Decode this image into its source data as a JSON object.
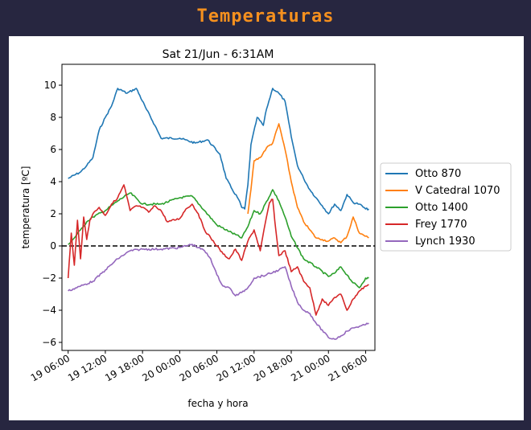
{
  "app": {
    "title": "Temperaturas"
  },
  "chart_data": {
    "type": "line",
    "title": "Sat 21/Jun - 6:31AM",
    "xlabel": "fecha y hora",
    "ylabel": "temperatura [ºC]",
    "x_range": [
      "2025-06-19 05:00",
      "2025-06-21 07:30"
    ],
    "ylim": [
      -6.5,
      11.3
    ],
    "x_ticks": [
      "19 06:00",
      "19 12:00",
      "19 18:00",
      "20 00:00",
      "20 06:00",
      "20 12:00",
      "20 18:00",
      "21 00:00",
      "21 06:00"
    ],
    "y_ticks": [
      "10",
      "8",
      "6",
      "4",
      "2",
      "0",
      "−2",
      "−4",
      "−6"
    ],
    "y_tick_values": [
      10,
      8,
      6,
      4,
      2,
      0,
      -2,
      -4,
      -6
    ],
    "reference_line": {
      "y": 0,
      "style": "dashed",
      "color": "#000000"
    },
    "grid": false,
    "legend": "right",
    "series": [
      {
        "name": "Otto 870",
        "color": "#1f77b4",
        "points": [
          [
            "2025-06-19 06:00",
            4.2
          ],
          [
            "2025-06-19 08:00",
            4.6
          ],
          [
            "2025-06-19 09:00",
            5.0
          ],
          [
            "2025-06-19 10:00",
            5.5
          ],
          [
            "2025-06-19 11:00",
            7.2
          ],
          [
            "2025-06-19 12:00",
            8.0
          ],
          [
            "2025-06-19 13:00",
            8.7
          ],
          [
            "2025-06-19 14:00",
            9.8
          ],
          [
            "2025-06-19 15:30",
            9.5
          ],
          [
            "2025-06-19 17:00",
            9.8
          ],
          [
            "2025-06-19 18:30",
            8.6
          ],
          [
            "2025-06-19 20:00",
            7.5
          ],
          [
            "2025-06-19 21:00",
            6.7
          ],
          [
            "2025-06-20 00:00",
            6.7
          ],
          [
            "2025-06-20 02:30",
            6.4
          ],
          [
            "2025-06-20 04:30",
            6.6
          ],
          [
            "2025-06-20 06:30",
            5.7
          ],
          [
            "2025-06-20 07:30",
            4.2
          ],
          [
            "2025-06-20 08:30",
            3.5
          ],
          [
            "2025-06-20 09:30",
            2.9
          ],
          [
            "2025-06-20 10:00",
            2.4
          ],
          [
            "2025-06-20 10:30",
            2.3
          ],
          [
            "2025-06-20 11:00",
            3.8
          ],
          [
            "2025-06-20 11:30",
            6.3
          ],
          [
            "2025-06-20 12:30",
            8.0
          ],
          [
            "2025-06-20 13:30",
            7.5
          ],
          [
            "2025-06-20 14:00",
            8.5
          ],
          [
            "2025-06-20 15:00",
            9.8
          ],
          [
            "2025-06-20 16:00",
            9.5
          ],
          [
            "2025-06-20 17:00",
            9.0
          ],
          [
            "2025-06-20 18:00",
            6.8
          ],
          [
            "2025-06-20 19:00",
            5.0
          ],
          [
            "2025-06-20 20:00",
            4.2
          ],
          [
            "2025-06-20 21:00",
            3.5
          ],
          [
            "2025-06-20 22:00",
            3.0
          ],
          [
            "2025-06-20 23:00",
            2.5
          ],
          [
            "2025-06-21 00:00",
            2.0
          ],
          [
            "2025-06-21 01:00",
            2.6
          ],
          [
            "2025-06-21 02:00",
            2.2
          ],
          [
            "2025-06-21 03:00",
            3.2
          ],
          [
            "2025-06-21 04:00",
            2.7
          ],
          [
            "2025-06-21 05:00",
            2.6
          ],
          [
            "2025-06-21 06:00",
            2.3
          ],
          [
            "2025-06-21 06:31",
            2.3
          ]
        ]
      },
      {
        "name": "V Catedral 1070",
        "color": "#ff7f0e",
        "points": [
          [
            "2025-06-20 11:00",
            2.0
          ],
          [
            "2025-06-20 11:30",
            3.5
          ],
          [
            "2025-06-20 12:00",
            5.3
          ],
          [
            "2025-06-20 13:00",
            5.5
          ],
          [
            "2025-06-20 14:00",
            6.1
          ],
          [
            "2025-06-20 15:00",
            6.4
          ],
          [
            "2025-06-20 16:00",
            7.6
          ],
          [
            "2025-06-20 17:00",
            6.0
          ],
          [
            "2025-06-20 18:00",
            4.0
          ],
          [
            "2025-06-20 19:00",
            2.4
          ],
          [
            "2025-06-20 20:00",
            1.5
          ],
          [
            "2025-06-20 21:00",
            1.0
          ],
          [
            "2025-06-20 22:00",
            0.5
          ],
          [
            "2025-06-20 23:00",
            0.4
          ],
          [
            "2025-06-21 00:00",
            0.3
          ],
          [
            "2025-06-21 01:00",
            0.5
          ],
          [
            "2025-06-21 02:00",
            0.2
          ],
          [
            "2025-06-21 03:00",
            0.6
          ],
          [
            "2025-06-21 04:00",
            1.8
          ],
          [
            "2025-06-21 05:00",
            0.8
          ],
          [
            "2025-06-21 06:31",
            0.5
          ]
        ]
      },
      {
        "name": "Otto 1400",
        "color": "#2ca02c",
        "points": [
          [
            "2025-06-19 06:00",
            0.1
          ],
          [
            "2025-06-19 07:00",
            0.5
          ],
          [
            "2025-06-19 08:00",
            1.0
          ],
          [
            "2025-06-19 09:00",
            1.5
          ],
          [
            "2025-06-19 10:00",
            1.8
          ],
          [
            "2025-06-19 12:00",
            2.2
          ],
          [
            "2025-06-19 14:00",
            2.8
          ],
          [
            "2025-06-19 16:00",
            3.3
          ],
          [
            "2025-06-19 18:00",
            2.6
          ],
          [
            "2025-06-19 21:00",
            2.6
          ],
          [
            "2025-06-20 00:00",
            3.0
          ],
          [
            "2025-06-20 02:00",
            3.1
          ],
          [
            "2025-06-20 04:00",
            2.2
          ],
          [
            "2025-06-20 06:00",
            1.3
          ],
          [
            "2025-06-20 08:00",
            0.9
          ],
          [
            "2025-06-20 10:00",
            0.5
          ],
          [
            "2025-06-20 11:00",
            1.2
          ],
          [
            "2025-06-20 12:00",
            2.2
          ],
          [
            "2025-06-20 13:00",
            2.0
          ],
          [
            "2025-06-20 15:00",
            3.5
          ],
          [
            "2025-06-20 16:00",
            2.8
          ],
          [
            "2025-06-20 17:00",
            1.8
          ],
          [
            "2025-06-20 18:00",
            0.6
          ],
          [
            "2025-06-20 20:00",
            -0.8
          ],
          [
            "2025-06-20 22:00",
            -1.3
          ],
          [
            "2025-06-21 00:00",
            -1.9
          ],
          [
            "2025-06-21 01:00",
            -1.7
          ],
          [
            "2025-06-21 02:00",
            -1.3
          ],
          [
            "2025-06-21 03:00",
            -1.8
          ],
          [
            "2025-06-21 04:00",
            -2.3
          ],
          [
            "2025-06-21 05:00",
            -2.6
          ],
          [
            "2025-06-21 06:00",
            -2.0
          ],
          [
            "2025-06-21 06:31",
            -2.0
          ]
        ]
      },
      {
        "name": "Frey 1770",
        "color": "#d62728",
        "points": [
          [
            "2025-06-19 06:00",
            -2.0
          ],
          [
            "2025-06-19 06:30",
            0.8
          ],
          [
            "2025-06-19 07:00",
            -1.2
          ],
          [
            "2025-06-19 07:30",
            1.6
          ],
          [
            "2025-06-19 08:00",
            -0.8
          ],
          [
            "2025-06-19 08:30",
            1.8
          ],
          [
            "2025-06-19 09:00",
            0.4
          ],
          [
            "2025-06-19 09:30",
            1.6
          ],
          [
            "2025-06-19 10:00",
            2.0
          ],
          [
            "2025-06-19 11:00",
            2.4
          ],
          [
            "2025-06-19 12:00",
            1.9
          ],
          [
            "2025-06-19 13:00",
            2.6
          ],
          [
            "2025-06-19 14:00",
            3.0
          ],
          [
            "2025-06-19 15:00",
            3.8
          ],
          [
            "2025-06-19 16:00",
            2.2
          ],
          [
            "2025-06-19 17:00",
            2.5
          ],
          [
            "2025-06-19 18:00",
            2.4
          ],
          [
            "2025-06-19 19:00",
            2.1
          ],
          [
            "2025-06-19 20:00",
            2.5
          ],
          [
            "2025-06-19 21:00",
            2.2
          ],
          [
            "2025-06-19 22:00",
            1.5
          ],
          [
            "2025-06-20 00:00",
            1.7
          ],
          [
            "2025-06-20 01:00",
            2.3
          ],
          [
            "2025-06-20 02:00",
            2.6
          ],
          [
            "2025-06-20 03:00",
            2.0
          ],
          [
            "2025-06-20 04:00",
            1.0
          ],
          [
            "2025-06-20 05:00",
            0.5
          ],
          [
            "2025-06-20 06:00",
            0.0
          ],
          [
            "2025-06-20 07:00",
            -0.5
          ],
          [
            "2025-06-20 08:00",
            -0.8
          ],
          [
            "2025-06-20 09:00",
            -0.2
          ],
          [
            "2025-06-20 10:00",
            -0.9
          ],
          [
            "2025-06-20 11:00",
            0.3
          ],
          [
            "2025-06-20 12:00",
            1.0
          ],
          [
            "2025-06-20 13:00",
            -0.3
          ],
          [
            "2025-06-20 14:00",
            1.8
          ],
          [
            "2025-06-20 14:30",
            2.7
          ],
          [
            "2025-06-20 15:00",
            2.9
          ],
          [
            "2025-06-20 15:30",
            1.0
          ],
          [
            "2025-06-20 16:00",
            -0.6
          ],
          [
            "2025-06-20 17:00",
            -0.3
          ],
          [
            "2025-06-20 18:00",
            -1.6
          ],
          [
            "2025-06-20 19:00",
            -1.3
          ],
          [
            "2025-06-20 20:00",
            -2.2
          ],
          [
            "2025-06-20 21:00",
            -2.6
          ],
          [
            "2025-06-20 22:00",
            -4.3
          ],
          [
            "2025-06-20 23:00",
            -3.3
          ],
          [
            "2025-06-21 00:00",
            -3.7
          ],
          [
            "2025-06-21 01:00",
            -3.2
          ],
          [
            "2025-06-21 02:00",
            -3.0
          ],
          [
            "2025-06-21 03:00",
            -4.0
          ],
          [
            "2025-06-21 04:00",
            -3.3
          ],
          [
            "2025-06-21 05:00",
            -2.8
          ],
          [
            "2025-06-21 06:00",
            -2.5
          ],
          [
            "2025-06-21 06:31",
            -2.4
          ]
        ]
      },
      {
        "name": "Lynch 1930",
        "color": "#9467bd",
        "points": [
          [
            "2025-06-19 06:00",
            -2.8
          ],
          [
            "2025-06-19 08:00",
            -2.5
          ],
          [
            "2025-06-19 10:00",
            -2.2
          ],
          [
            "2025-06-19 12:00",
            -1.5
          ],
          [
            "2025-06-19 14:00",
            -0.8
          ],
          [
            "2025-06-19 16:00",
            -0.3
          ],
          [
            "2025-06-19 18:00",
            -0.2
          ],
          [
            "2025-06-19 21:00",
            -0.2
          ],
          [
            "2025-06-20 00:00",
            -0.1
          ],
          [
            "2025-06-20 02:00",
            0.1
          ],
          [
            "2025-06-20 04:00",
            -0.3
          ],
          [
            "2025-06-20 05:00",
            -0.8
          ],
          [
            "2025-06-20 06:00",
            -1.8
          ],
          [
            "2025-06-20 07:00",
            -2.5
          ],
          [
            "2025-06-20 08:00",
            -2.6
          ],
          [
            "2025-06-20 09:00",
            -3.1
          ],
          [
            "2025-06-20 10:00",
            -2.9
          ],
          [
            "2025-06-20 11:00",
            -2.6
          ],
          [
            "2025-06-20 12:00",
            -2.0
          ],
          [
            "2025-06-20 14:00",
            -1.8
          ],
          [
            "2025-06-20 16:00",
            -1.5
          ],
          [
            "2025-06-20 17:00",
            -1.3
          ],
          [
            "2025-06-20 18:00",
            -2.5
          ],
          [
            "2025-06-20 19:00",
            -3.5
          ],
          [
            "2025-06-20 20:00",
            -4.0
          ],
          [
            "2025-06-20 21:00",
            -4.2
          ],
          [
            "2025-06-20 22:00",
            -4.8
          ],
          [
            "2025-06-21 00:00",
            -5.7
          ],
          [
            "2025-06-21 01:00",
            -5.8
          ],
          [
            "2025-06-21 02:00",
            -5.6
          ],
          [
            "2025-06-21 03:00",
            -5.3
          ],
          [
            "2025-06-21 04:00",
            -5.1
          ],
          [
            "2025-06-21 05:00",
            -5.0
          ],
          [
            "2025-06-21 06:00",
            -4.9
          ],
          [
            "2025-06-21 06:31",
            -4.8
          ]
        ]
      }
    ]
  }
}
